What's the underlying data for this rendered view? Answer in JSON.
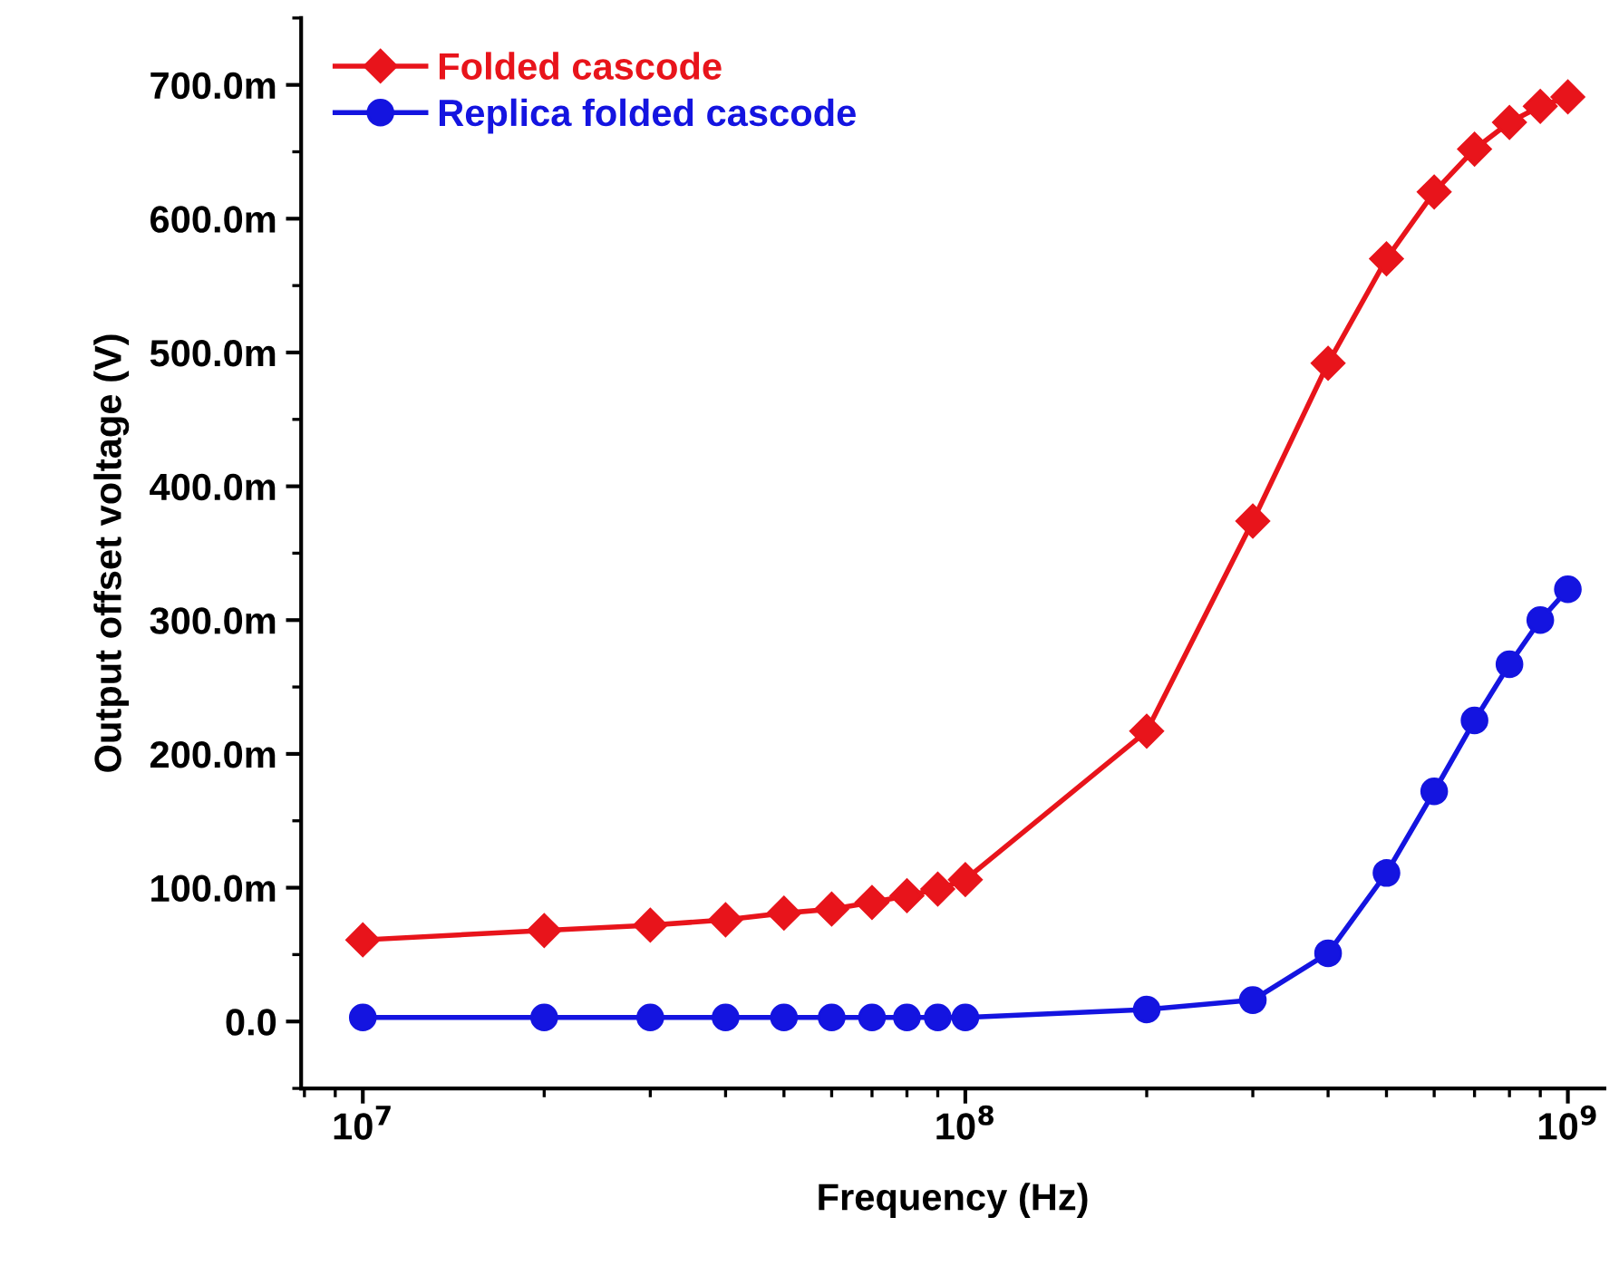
{
  "chart_data": {
    "type": "line",
    "xlabel": "Frequency (Hz)",
    "ylabel": "Output offset voltage (V)",
    "log": "x",
    "grid": false,
    "legend": "top left",
    "line_style": "solid",
    "x": [
      10000000.0,
      20000000.0,
      30000000.0,
      40000000.0,
      50000000.0,
      60000000.0,
      70000000.0,
      80000000.0,
      90000000.0,
      100000000.0,
      200000000.0,
      300000000.0,
      400000000.0,
      500000000.0,
      600000000.0,
      700000000.0,
      800000000.0,
      900000000.0,
      1000000000.0
    ],
    "xlim": [
      7900000.0,
      1150000000.0
    ],
    "xticks": [
      {
        "value": 10000000.0,
        "label": "10$^{7}$"
      },
      {
        "value": 100000000.0,
        "label": "10$^{8}$"
      },
      {
        "value": 1000000000.0,
        "label": "10$^{9}$"
      }
    ],
    "ylim": [
      -50,
      750
    ],
    "yticks": [
      {
        "value": 0,
        "label": "0.0"
      },
      {
        "value": 100,
        "label": "100.0m"
      },
      {
        "value": 200,
        "label": "200.0m"
      },
      {
        "value": 300,
        "label": "300.0m"
      },
      {
        "value": 400,
        "label": "400.0m"
      },
      {
        "value": 500,
        "label": "500.0m"
      },
      {
        "value": 600,
        "label": "600.0m"
      },
      {
        "value": 700,
        "label": "700.0m"
      }
    ],
    "series": [
      {
        "name": "Folded cascode",
        "color": "#e8141b",
        "marker": "diamond",
        "values": [
          61,
          68,
          72,
          76,
          81,
          84,
          89,
          94,
          99,
          106,
          217,
          374,
          492,
          570,
          620,
          652,
          672,
          684,
          691
        ]
      },
      {
        "name": "Replica folded cascode",
        "color": "#1414e0",
        "marker": "circle",
        "values": [
          3,
          3,
          3,
          3,
          3,
          3,
          3,
          3,
          3,
          3,
          9,
          16,
          51,
          111,
          172,
          225,
          267,
          300,
          323
        ]
      }
    ]
  }
}
